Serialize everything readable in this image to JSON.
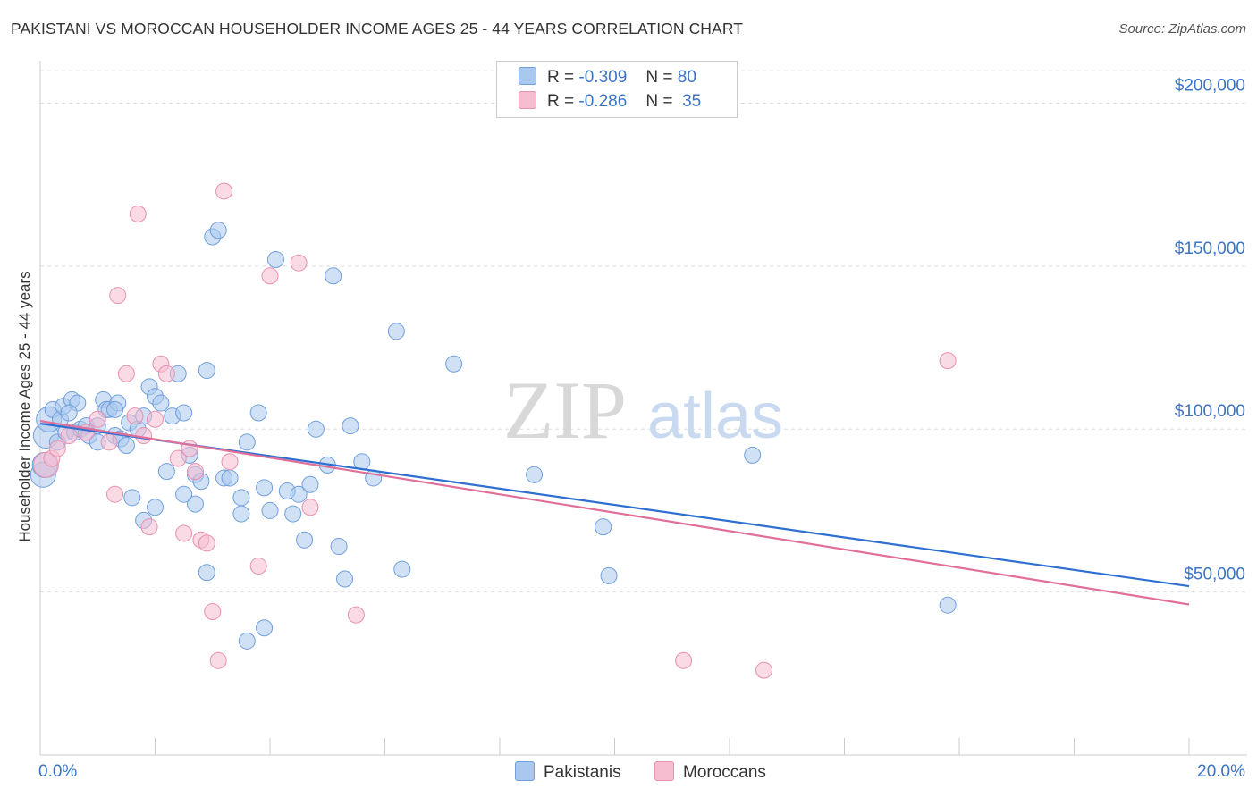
{
  "title": "PAKISTANI VS MOROCCAN HOUSEHOLDER INCOME AGES 25 - 44 YEARS CORRELATION CHART",
  "source": "Source: ZipAtlas.com",
  "watermark": {
    "zip": "ZIP",
    "atlas": "atlas"
  },
  "legend": {
    "rows": [
      {
        "r_label": "R =",
        "r_value": "-0.309",
        "n_label": "N =",
        "n_value": "80"
      },
      {
        "r_label": "R =",
        "r_value": "-0.286",
        "n_label": "N =",
        "n_value": "35"
      }
    ]
  },
  "bottom_legend": {
    "items": [
      "Pakistanis",
      "Moroccans"
    ]
  },
  "colors": {
    "pakistanis_fill": "#aac8ee",
    "pakistanis_stroke": "#6f9fdc",
    "pakistanis_line": "#2f6fd1",
    "moroccans_fill": "#f6bcd0",
    "moroccans_stroke": "#e890b0",
    "moroccans_line": "#e0709a",
    "axis_label": "#3a74c4",
    "grid": "#dddddd"
  },
  "chart_data": {
    "type": "scatter",
    "title": "PAKISTANI VS MOROCCAN HOUSEHOLDER INCOME AGES 25 - 44 YEARS CORRELATION CHART",
    "xlabel": "",
    "ylabel": "Householder Income Ages 25 - 44 years",
    "xlim": [
      0,
      20
    ],
    "ylim": [
      0,
      210000
    ],
    "x_tick_labels": [
      "0.0%",
      "20.0%"
    ],
    "y_ticks": [
      50000,
      100000,
      150000,
      200000
    ],
    "y_tick_labels": [
      "$50,000",
      "$100,000",
      "$150,000",
      "$200,000"
    ],
    "grid": true,
    "legend_position": "top-center",
    "series": [
      {
        "name": "Pakistanis",
        "trend": {
          "x": [
            0,
            20
          ],
          "y": [
            101700,
            51800
          ]
        },
        "points": [
          [
            0.05,
            86000
          ],
          [
            0.08,
            89000
          ],
          [
            0.1,
            98000
          ],
          [
            0.15,
            103000
          ],
          [
            0.22,
            106000
          ],
          [
            0.3,
            96000
          ],
          [
            0.35,
            103000
          ],
          [
            0.4,
            107000
          ],
          [
            0.45,
            99000
          ],
          [
            0.55,
            109000
          ],
          [
            0.6,
            99000
          ],
          [
            0.65,
            108000
          ],
          [
            0.7,
            100000
          ],
          [
            0.8,
            101000
          ],
          [
            0.85,
            98000
          ],
          [
            1.0,
            96000
          ],
          [
            1.1,
            109000
          ],
          [
            1.15,
            106000
          ],
          [
            1.2,
            106000
          ],
          [
            1.3,
            98000
          ],
          [
            1.35,
            108000
          ],
          [
            1.4,
            97000
          ],
          [
            1.5,
            95000
          ],
          [
            1.55,
            102000
          ],
          [
            1.7,
            100000
          ],
          [
            1.8,
            104000
          ],
          [
            1.9,
            113000
          ],
          [
            2.0,
            110000
          ],
          [
            2.1,
            108000
          ],
          [
            2.3,
            104000
          ],
          [
            2.4,
            117000
          ],
          [
            2.5,
            105000
          ],
          [
            2.6,
            92000
          ],
          [
            2.7,
            86000
          ],
          [
            2.8,
            84000
          ],
          [
            2.9,
            118000
          ],
          [
            3.0,
            159000
          ],
          [
            3.1,
            161000
          ],
          [
            3.2,
            85000
          ],
          [
            3.3,
            85000
          ],
          [
            3.5,
            79000
          ],
          [
            3.6,
            96000
          ],
          [
            3.8,
            105000
          ],
          [
            3.9,
            82000
          ],
          [
            4.0,
            75000
          ],
          [
            4.1,
            152000
          ],
          [
            4.3,
            81000
          ],
          [
            4.4,
            74000
          ],
          [
            4.5,
            80000
          ],
          [
            4.6,
            66000
          ],
          [
            4.7,
            83000
          ],
          [
            4.8,
            100000
          ],
          [
            5.0,
            89000
          ],
          [
            5.1,
            147000
          ],
          [
            5.2,
            64000
          ],
          [
            5.4,
            101000
          ],
          [
            5.6,
            90000
          ],
          [
            5.8,
            85000
          ],
          [
            6.2,
            130000
          ],
          [
            6.3,
            57000
          ],
          [
            7.2,
            120000
          ],
          [
            8.6,
            86000
          ],
          [
            9.8,
            70000
          ],
          [
            9.9,
            55000
          ],
          [
            12.4,
            92000
          ],
          [
            15.8,
            46000
          ],
          [
            2.7,
            77000
          ],
          [
            1.6,
            79000
          ],
          [
            2.0,
            76000
          ],
          [
            1.8,
            72000
          ],
          [
            2.5,
            80000
          ],
          [
            2.2,
            87000
          ],
          [
            1.0,
            101000
          ],
          [
            1.3,
            106000
          ],
          [
            3.5,
            74000
          ],
          [
            2.9,
            56000
          ],
          [
            5.3,
            54000
          ],
          [
            3.6,
            35000
          ],
          [
            3.9,
            39000
          ],
          [
            0.5,
            105000
          ]
        ]
      },
      {
        "name": "Moroccans",
        "trend": {
          "x": [
            0,
            20
          ],
          "y": [
            102500,
            46200
          ]
        },
        "points": [
          [
            0.1,
            89000
          ],
          [
            0.2,
            91000
          ],
          [
            0.3,
            94000
          ],
          [
            0.5,
            98000
          ],
          [
            0.8,
            99000
          ],
          [
            1.0,
            103000
          ],
          [
            1.2,
            96000
          ],
          [
            1.3,
            80000
          ],
          [
            1.35,
            141000
          ],
          [
            1.5,
            117000
          ],
          [
            1.65,
            104000
          ],
          [
            1.7,
            166000
          ],
          [
            1.9,
            70000
          ],
          [
            2.0,
            103000
          ],
          [
            2.1,
            120000
          ],
          [
            2.2,
            117000
          ],
          [
            2.4,
            91000
          ],
          [
            2.5,
            68000
          ],
          [
            2.6,
            94000
          ],
          [
            2.7,
            87000
          ],
          [
            2.8,
            66000
          ],
          [
            3.0,
            44000
          ],
          [
            3.1,
            29000
          ],
          [
            3.2,
            173000
          ],
          [
            3.3,
            90000
          ],
          [
            3.8,
            58000
          ],
          [
            4.0,
            147000
          ],
          [
            4.5,
            151000
          ],
          [
            4.7,
            76000
          ],
          [
            5.5,
            43000
          ],
          [
            11.2,
            29000
          ],
          [
            12.6,
            26000
          ],
          [
            15.8,
            121000
          ],
          [
            2.9,
            65000
          ],
          [
            1.8,
            98000
          ]
        ]
      }
    ]
  },
  "x_tick_labels": {
    "left": "0.0%",
    "right": "20.0%"
  }
}
